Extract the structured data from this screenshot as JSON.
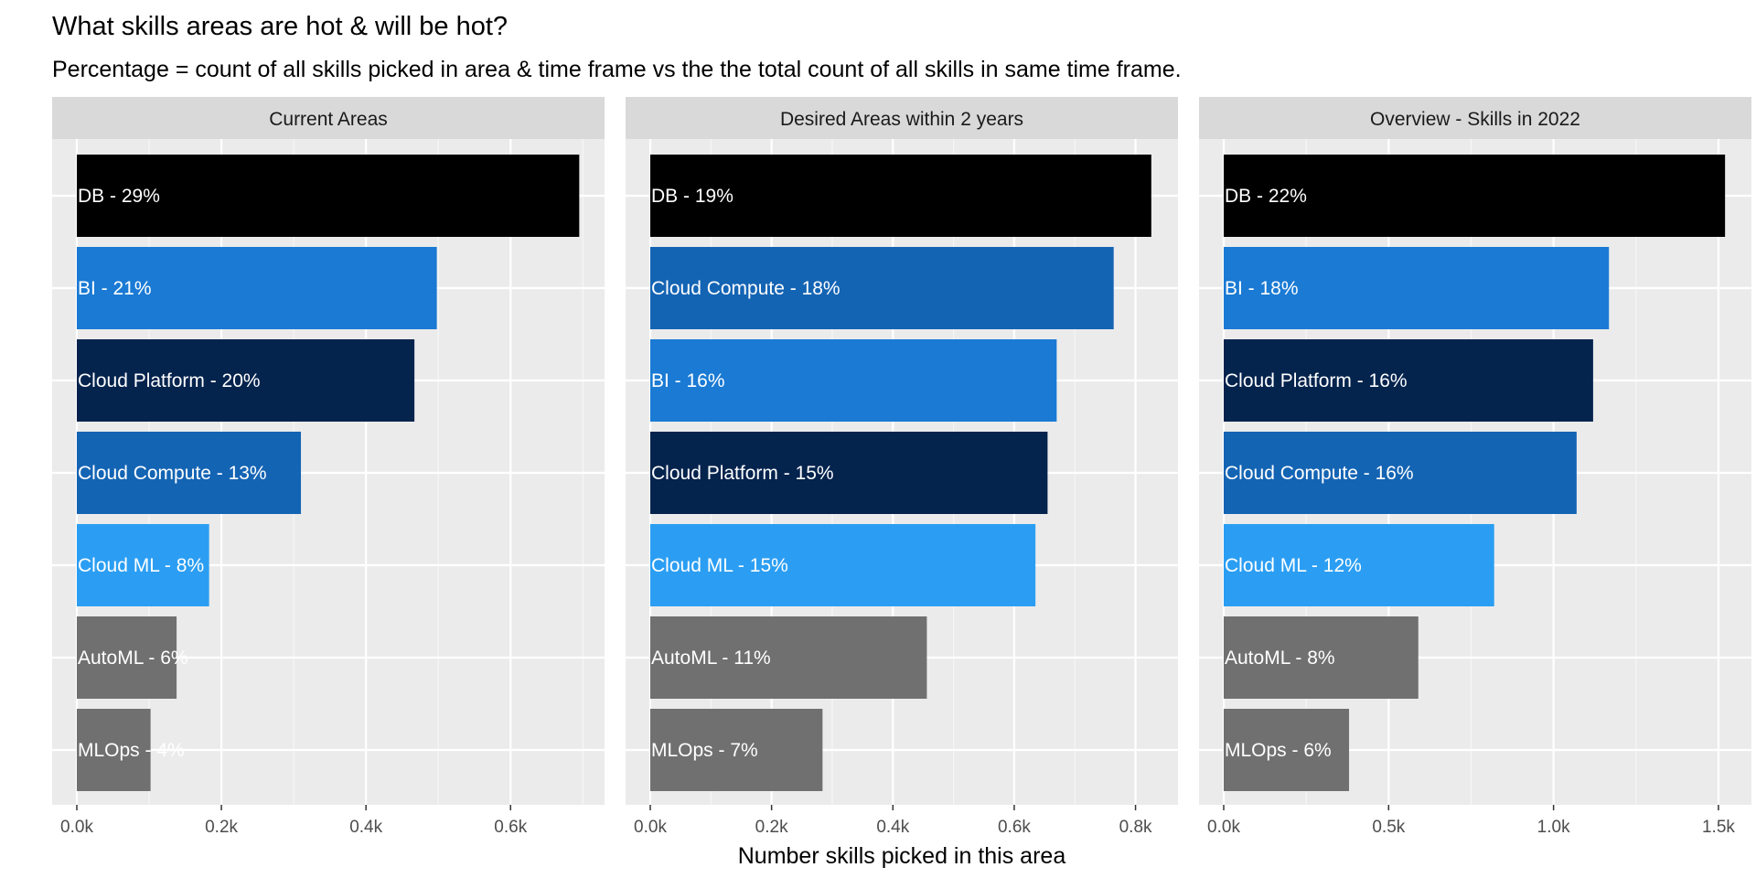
{
  "chart_data": {
    "type": "bar",
    "orientation": "horizontal",
    "title": "What skills areas are hot & will be hot?",
    "subtitle": "Percentage = count of all skills picked in area & time frame vs the the total count of all skills in same time frame.",
    "xlabel": "Number skills picked in this area",
    "ylabel": "",
    "grid": true,
    "legend": "none",
    "category_colors": {
      "DB": "#000000",
      "BI": "#1a7ad4",
      "Cloud Platform": "#04234d",
      "Cloud Compute": "#1464b4",
      "Cloud ML": "#2b9ef3",
      "AutoML": "#707070",
      "MLOps": "#707070"
    },
    "panels": [
      {
        "strip": "Current Areas",
        "xlim": [
          0,
          0.73
        ],
        "ticks": [
          0,
          0.2,
          0.4,
          0.6
        ],
        "tick_labels": [
          "0.0k",
          "0.2k",
          "0.4k",
          "0.6k"
        ],
        "bars": [
          {
            "category": "DB",
            "label": "DB - 29%",
            "value": 0.695
          },
          {
            "category": "BI",
            "label": "BI - 21%",
            "value": 0.498
          },
          {
            "category": "Cloud Platform",
            "label": "Cloud Platform - 20%",
            "value": 0.467
          },
          {
            "category": "Cloud Compute",
            "label": "Cloud Compute - 13%",
            "value": 0.31
          },
          {
            "category": "Cloud ML",
            "label": "Cloud ML - 8%",
            "value": 0.183
          },
          {
            "category": "AutoML",
            "label": "AutoML - 6%",
            "value": 0.138
          },
          {
            "category": "MLOps",
            "label": "MLOps - 4%",
            "value": 0.102
          }
        ]
      },
      {
        "strip": "Desired Areas within 2 years",
        "xlim": [
          0,
          0.87
        ],
        "ticks": [
          0,
          0.2,
          0.4,
          0.6,
          0.8
        ],
        "tick_labels": [
          "0.0k",
          "0.2k",
          "0.4k",
          "0.6k",
          "0.8k"
        ],
        "bars": [
          {
            "category": "DB",
            "label": "DB - 19%",
            "value": 0.826
          },
          {
            "category": "Cloud Compute",
            "label": "Cloud Compute - 18%",
            "value": 0.764
          },
          {
            "category": "BI",
            "label": "BI - 16%",
            "value": 0.67
          },
          {
            "category": "Cloud Platform",
            "label": "Cloud Platform - 15%",
            "value": 0.655
          },
          {
            "category": "Cloud ML",
            "label": "Cloud ML - 15%",
            "value": 0.635
          },
          {
            "category": "AutoML",
            "label": "AutoML - 11%",
            "value": 0.456
          },
          {
            "category": "MLOps",
            "label": "MLOps - 7%",
            "value": 0.284
          }
        ]
      },
      {
        "strip": "Overview - Skills in 2022",
        "xlim": [
          0,
          1.6
        ],
        "ticks": [
          0,
          0.5,
          1.0,
          1.5
        ],
        "tick_labels": [
          "0.0k",
          "0.5k",
          "1.0k",
          "1.5k"
        ],
        "bars": [
          {
            "category": "DB",
            "label": "DB - 22%",
            "value": 1.52
          },
          {
            "category": "BI",
            "label": "BI - 18%",
            "value": 1.168
          },
          {
            "category": "Cloud Platform",
            "label": "Cloud Platform - 16%",
            "value": 1.12
          },
          {
            "category": "Cloud Compute",
            "label": "Cloud Compute - 16%",
            "value": 1.07
          },
          {
            "category": "Cloud ML",
            "label": "Cloud ML - 12%",
            "value": 0.82
          },
          {
            "category": "AutoML",
            "label": "AutoML - 8%",
            "value": 0.59
          },
          {
            "category": "MLOps",
            "label": "MLOps - 6%",
            "value": 0.38
          }
        ]
      }
    ]
  }
}
